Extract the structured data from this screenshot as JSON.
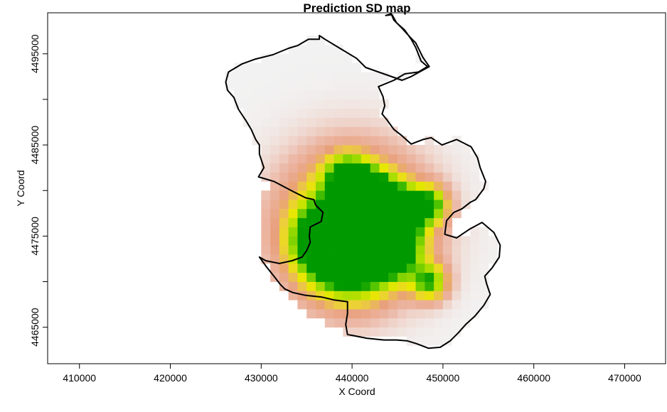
{
  "chart_data": {
    "type": "heatmap",
    "title": "Prediction SD map",
    "xlabel": "X Coord",
    "ylabel": "Y Coord",
    "xlim": [
      406500,
      474500
    ],
    "ylim": [
      4461000,
      4499500
    ],
    "x_ticks": [
      {
        "value": 410000,
        "label": "410000"
      },
      {
        "value": 420000,
        "label": "420000"
      },
      {
        "value": 430000,
        "label": "430000"
      },
      {
        "value": 440000,
        "label": "440000"
      },
      {
        "value": 450000,
        "label": "450000"
      },
      {
        "value": 460000,
        "label": "460000"
      },
      {
        "value": 470000,
        "label": "470000"
      }
    ],
    "y_ticks": [
      {
        "value": 4465000,
        "label": "4465000",
        "labeled": true
      },
      {
        "value": 4470000,
        "label": "",
        "labeled": false
      },
      {
        "value": 4475000,
        "label": "4475000",
        "labeled": true
      },
      {
        "value": 4480000,
        "label": "",
        "labeled": false
      },
      {
        "value": 4485000,
        "label": "4485000",
        "labeled": true
      },
      {
        "value": 4490000,
        "label": "",
        "labeled": false
      },
      {
        "value": 4495000,
        "label": "4495000",
        "labeled": true
      }
    ],
    "color_scale": {
      "background": "#f2f2f2",
      "stops": [
        "#f2f2f2",
        "#ecb8a6",
        "#e9a07c",
        "#eccf3a",
        "#e8e800",
        "#a9de00",
        "#4fc400",
        "#009a00"
      ]
    },
    "grid_step": 1000,
    "low_sd_centers": [
      {
        "x": 440000,
        "y": 4476500,
        "sd": 3700
      },
      {
        "x": 442000,
        "y": 4475500,
        "sd": 2500
      },
      {
        "x": 439500,
        "y": 4472500,
        "sd": 2300
      },
      {
        "x": 437000,
        "y": 4474500,
        "sd": 1800
      },
      {
        "x": 444500,
        "y": 4473500,
        "sd": 1400
      },
      {
        "x": 439500,
        "y": 4481500,
        "sd": 1200
      },
      {
        "x": 441500,
        "y": 4480000,
        "sd": 1100
      },
      {
        "x": 445500,
        "y": 4477500,
        "sd": 1200
      },
      {
        "x": 448500,
        "y": 4478500,
        "sd": 1000
      },
      {
        "x": 448500,
        "y": 4470000,
        "sd": 1000
      },
      {
        "x": 443500,
        "y": 4478500,
        "sd": 1200
      }
    ],
    "boundary": [
      [
        443700,
        4499200
      ],
      [
        444300,
        4499400
      ],
      [
        444600,
        4498700
      ],
      [
        445500,
        4497800
      ],
      [
        446500,
        4496700
      ],
      [
        447000,
        4496200
      ],
      [
        447400,
        4495400
      ],
      [
        447800,
        4494600
      ],
      [
        448500,
        4493600
      ],
      [
        446500,
        4492500
      ],
      [
        445500,
        4492100
      ],
      [
        443500,
        4492800
      ],
      [
        441500,
        4493500
      ],
      [
        440500,
        4494500
      ],
      [
        439000,
        4495400
      ],
      [
        437000,
        4496600
      ],
      [
        436400,
        4497000
      ],
      [
        436400,
        4496600
      ],
      [
        435200,
        4496600
      ],
      [
        434000,
        4495900
      ],
      [
        433000,
        4495600
      ],
      [
        431300,
        4494900
      ],
      [
        429300,
        4494400
      ],
      [
        427900,
        4493900
      ],
      [
        426400,
        4493000
      ],
      [
        426100,
        4491900
      ],
      [
        426300,
        4491000
      ],
      [
        427000,
        4490200
      ],
      [
        427500,
        4488900
      ],
      [
        428300,
        4487700
      ],
      [
        428900,
        4486700
      ],
      [
        429400,
        4485600
      ],
      [
        429800,
        4485000
      ],
      [
        429800,
        4484000
      ],
      [
        430300,
        4482500
      ],
      [
        429700,
        4481500
      ],
      [
        431400,
        4481000
      ],
      [
        433500,
        4479900
      ],
      [
        434900,
        4479200
      ],
      [
        435800,
        4479000
      ],
      [
        436000,
        4478400
      ],
      [
        436800,
        4477600
      ],
      [
        436600,
        4476600
      ],
      [
        435400,
        4476000
      ],
      [
        435300,
        4475000
      ],
      [
        435400,
        4474300
      ],
      [
        435000,
        4473400
      ],
      [
        434500,
        4472700
      ],
      [
        433400,
        4472300
      ],
      [
        432000,
        4472000
      ],
      [
        430500,
        4472300
      ],
      [
        429800,
        4472700
      ],
      [
        430600,
        4471600
      ],
      [
        431400,
        4470600
      ],
      [
        432100,
        4469700
      ],
      [
        432600,
        4469200
      ],
      [
        433500,
        4468800
      ],
      [
        434900,
        4468500
      ],
      [
        436700,
        4468300
      ],
      [
        438000,
        4468000
      ],
      [
        439500,
        4467800
      ],
      [
        439500,
        4466500
      ],
      [
        439300,
        4465300
      ],
      [
        439500,
        4464200
      ],
      [
        441600,
        4463800
      ],
      [
        443500,
        4463600
      ],
      [
        444900,
        4463600
      ],
      [
        446100,
        4463500
      ],
      [
        447100,
        4463200
      ],
      [
        448400,
        4462700
      ],
      [
        449700,
        4462800
      ],
      [
        450800,
        4463500
      ],
      [
        451700,
        4464400
      ],
      [
        452500,
        4465300
      ],
      [
        453500,
        4466200
      ],
      [
        454500,
        4467400
      ],
      [
        455200,
        4468600
      ],
      [
        454800,
        4469800
      ],
      [
        454600,
        4470600
      ],
      [
        455400,
        4471500
      ],
      [
        456200,
        4472700
      ],
      [
        456300,
        4474000
      ],
      [
        455600,
        4475400
      ],
      [
        454300,
        4476500
      ],
      [
        453000,
        4475800
      ],
      [
        451500,
        4474800
      ],
      [
        450200,
        4475200
      ],
      [
        450400,
        4476700
      ],
      [
        451200,
        4477600
      ],
      [
        452100,
        4478000
      ],
      [
        453000,
        4478700
      ],
      [
        453600,
        4479000
      ],
      [
        454500,
        4480200
      ],
      [
        454700,
        4481000
      ],
      [
        454100,
        4482500
      ],
      [
        453800,
        4483600
      ],
      [
        453100,
        4484800
      ],
      [
        451500,
        4485600
      ],
      [
        449900,
        4485000
      ],
      [
        448700,
        4485800
      ],
      [
        447800,
        4485600
      ],
      [
        446500,
        4485100
      ],
      [
        445500,
        4486000
      ],
      [
        444600,
        4486700
      ],
      [
        443800,
        4487800
      ],
      [
        443300,
        4488400
      ],
      [
        443600,
        4489300
      ],
      [
        443400,
        4490300
      ],
      [
        442900,
        4491400
      ],
      [
        444600,
        4492100
      ],
      [
        445800,
        4492800
      ],
      [
        447300,
        4493000
      ],
      [
        448300,
        4493600
      ],
      [
        447600,
        4494200
      ],
      [
        447000,
        4495700
      ],
      [
        446500,
        4496600
      ],
      [
        445800,
        4497600
      ],
      [
        444900,
        4498400
      ],
      [
        444400,
        4499300
      ],
      [
        443700,
        4499200
      ]
    ]
  }
}
